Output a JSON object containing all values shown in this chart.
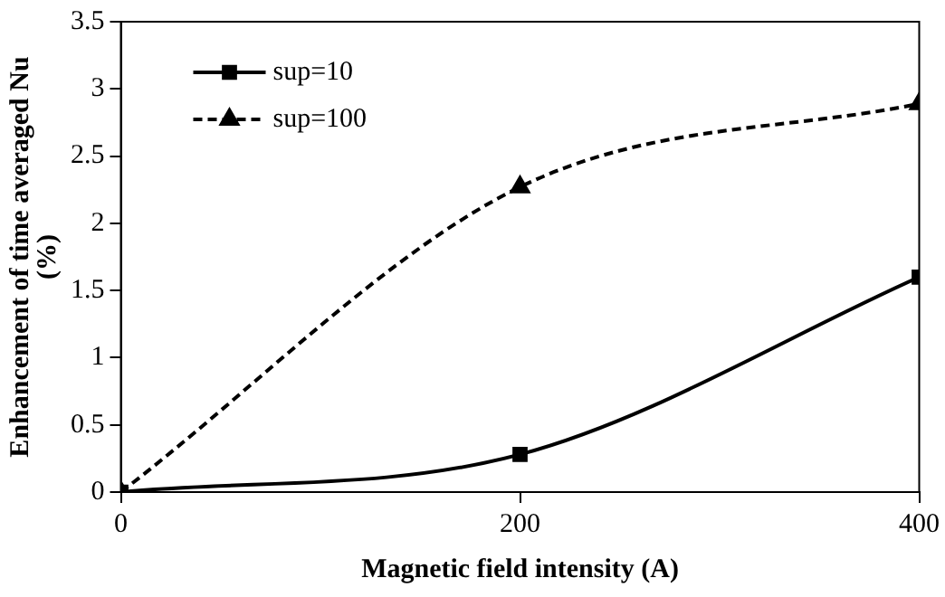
{
  "chart_data": {
    "type": "line",
    "xlabel": "Magnetic field intensity (A)",
    "ylabel": "Enhancement of time averaged Nu (%)",
    "x": [
      0,
      200,
      400
    ],
    "series": [
      {
        "name": "sup=10",
        "color": "#000000",
        "values": [
          0,
          0.28,
          1.6
        ],
        "marker": "square",
        "line_style": "solid"
      },
      {
        "name": "sup=100",
        "color": "#000000",
        "values": [
          0,
          2.27,
          2.89
        ],
        "marker": "triangle",
        "line_style": "dashed"
      }
    ],
    "xlim": [
      0,
      400
    ],
    "xticks": [
      0,
      200,
      400
    ],
    "ylim": [
      0,
      3.5
    ],
    "yticks": [
      0,
      0.5,
      1,
      1.5,
      2,
      2.5,
      3,
      3.5
    ],
    "grid": false,
    "legend": "top left"
  }
}
